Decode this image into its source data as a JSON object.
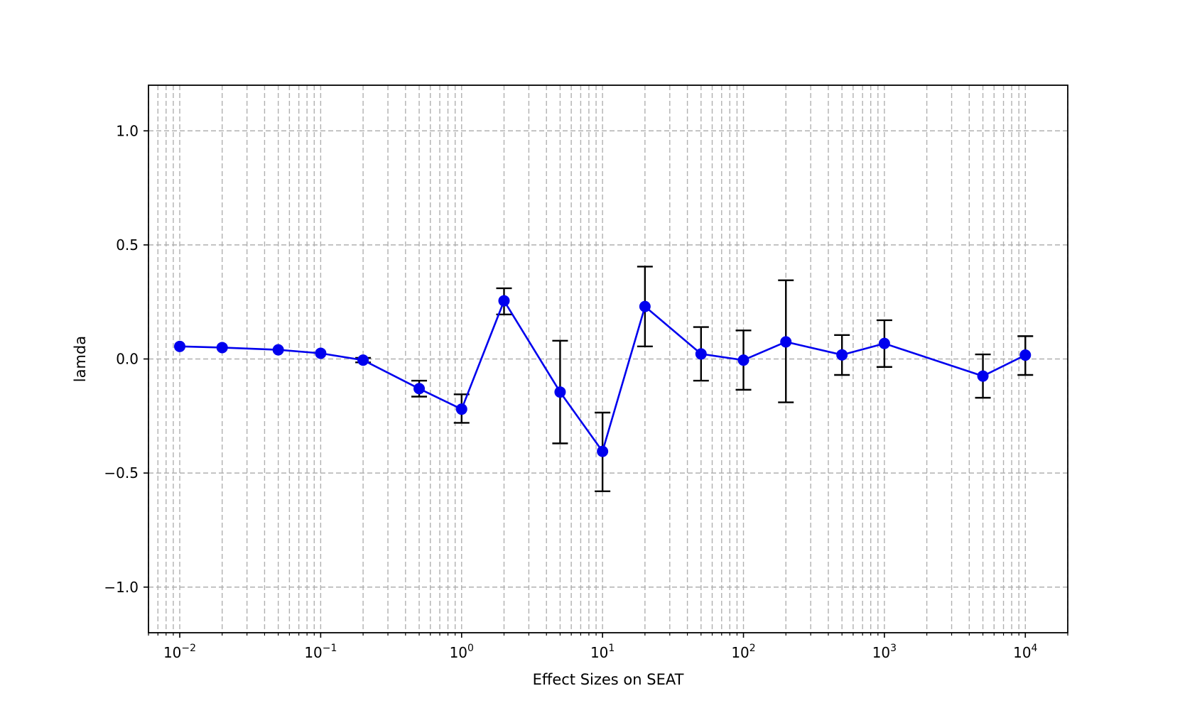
{
  "chart_data": {
    "type": "line",
    "title": "",
    "xlabel": "Effect Sizes on SEAT",
    "ylabel": "lamda",
    "xscale": "log",
    "xlim": [
      0.006,
      20000
    ],
    "ylim": [
      -1.2,
      1.2
    ],
    "grid": true,
    "grid_which": "both",
    "x_ticks": [
      {
        "value": 0.01,
        "base": "10",
        "exp": "−2"
      },
      {
        "value": 0.1,
        "base": "10",
        "exp": "−1"
      },
      {
        "value": 1,
        "base": "10",
        "exp": "0"
      },
      {
        "value": 10,
        "base": "10",
        "exp": "1"
      },
      {
        "value": 100,
        "base": "10",
        "exp": "2"
      },
      {
        "value": 1000,
        "base": "10",
        "exp": "3"
      },
      {
        "value": 10000,
        "base": "10",
        "exp": "4"
      }
    ],
    "y_ticks": [
      {
        "value": 1.0,
        "label": "1.0"
      },
      {
        "value": 0.5,
        "label": "0.5"
      },
      {
        "value": 0.0,
        "label": "0.0"
      },
      {
        "value": -0.5,
        "label": "−0.5"
      },
      {
        "value": -1.0,
        "label": "−1.0"
      }
    ],
    "series": [
      {
        "color": "#0000ee",
        "marker": "circle",
        "x": [
          0.01,
          0.02,
          0.05,
          0.1,
          0.2,
          0.5,
          1,
          2,
          5,
          10,
          20,
          50,
          100,
          200,
          500,
          1000,
          5000,
          10000
        ],
        "y": [
          0.055,
          0.05,
          0.04,
          0.025,
          -0.005,
          -0.13,
          -0.22,
          0.255,
          -0.145,
          -0.405,
          0.23,
          0.022,
          -0.005,
          0.075,
          0.018,
          0.068,
          -0.075,
          0.017
        ],
        "err_low": [
          0.055,
          0.05,
          0.04,
          0.025,
          -0.015,
          -0.165,
          -0.28,
          0.195,
          -0.37,
          -0.58,
          0.055,
          -0.095,
          -0.135,
          -0.19,
          -0.07,
          -0.035,
          -0.17,
          -0.07
        ],
        "err_high": [
          0.055,
          0.05,
          0.04,
          0.025,
          0.005,
          -0.095,
          -0.155,
          0.31,
          0.08,
          -0.235,
          0.405,
          0.14,
          0.125,
          0.345,
          0.105,
          0.17,
          0.02,
          0.1
        ]
      }
    ]
  }
}
